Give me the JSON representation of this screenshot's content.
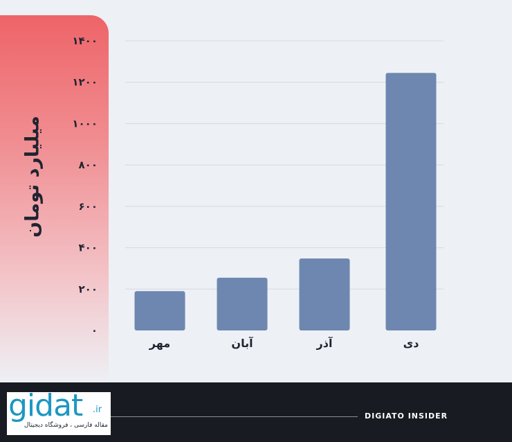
{
  "chart_data": {
    "type": "bar",
    "ylabel": "میلیارد تومان",
    "categories": [
      "مهر",
      "آبان",
      "آذر",
      "دی"
    ],
    "values": [
      190,
      255,
      348,
      1245
    ],
    "ylim": [
      0,
      1400
    ],
    "yticks": [
      0,
      200,
      400,
      600,
      800,
      1000,
      1200,
      1400
    ],
    "ytick_labels": [
      "۰",
      "۲۰۰",
      "۴۰۰",
      "۶۰۰",
      "۸۰۰",
      "۱۰۰۰",
      "۱۲۰۰",
      "۱۴۰۰"
    ],
    "grid": true,
    "bar_color": "#6e87b0",
    "grid_color": "#d5d9e0"
  },
  "footer": {
    "brand": "DIGIATO INSIDER",
    "logo_text": "gidat",
    "logo_tld": ".ir",
    "logo_tagline": "مقاله فارسی ، فروشگاه دیجیتال"
  },
  "colors": {
    "panel_top": "#ee6468",
    "footer_bg": "#181c22",
    "logo_blue": "#1d97c1"
  }
}
